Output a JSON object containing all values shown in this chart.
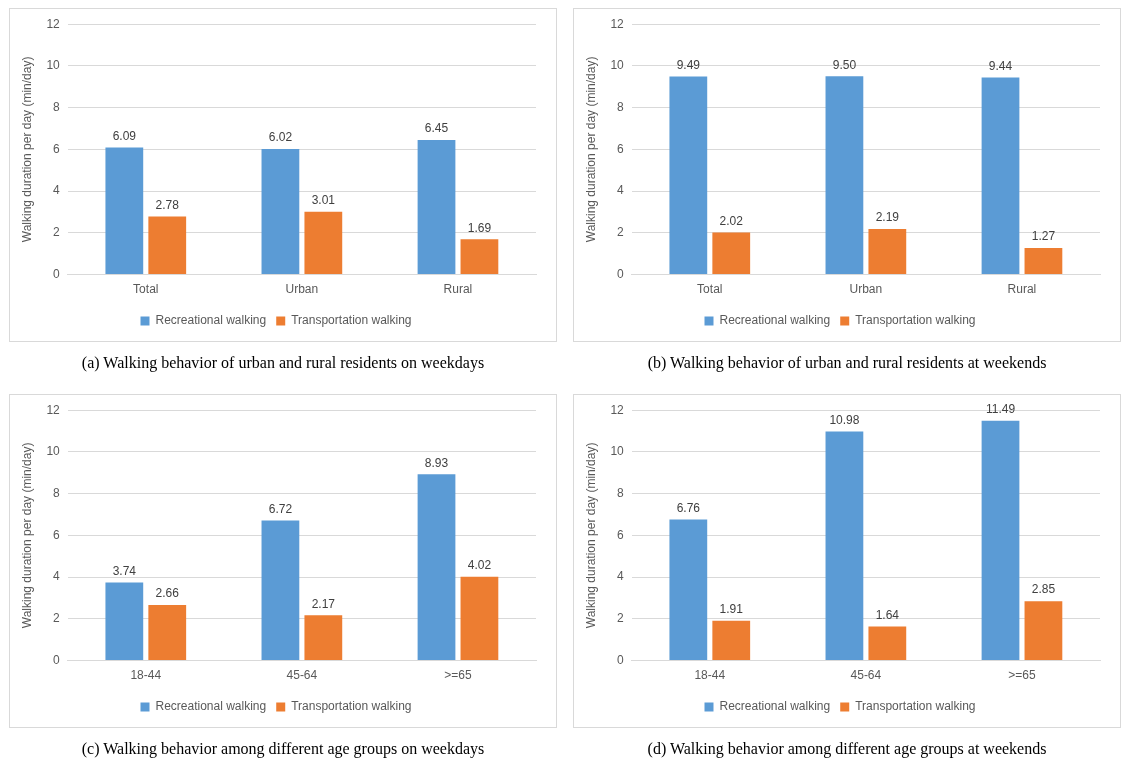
{
  "chart_data": [
    {
      "type": "bar",
      "title": "(a)  Walking behavior of urban and rural residents on weekdays",
      "ylabel": "Walking duration per day (min/day)",
      "categories": [
        "Total",
        "Urban",
        "Rural"
      ],
      "ylim": [
        0,
        12
      ],
      "yticks": [
        0,
        2,
        4,
        6,
        8,
        10,
        12
      ],
      "grid": "y",
      "legend": "bottom",
      "series": [
        {
          "name": "Recreational walking",
          "color": "#5b9bd5",
          "values": [
            6.09,
            6.02,
            6.45
          ],
          "value_labels": [
            "6.09",
            "6.02",
            "6.45"
          ]
        },
        {
          "name": "Transportation walking",
          "color": "#ed7d31",
          "values": [
            2.78,
            3.01,
            1.69
          ],
          "value_labels": [
            "2.78",
            "3.01",
            "1.69"
          ]
        }
      ]
    },
    {
      "type": "bar",
      "title": "(b)  Walking behavior of urban and rural residents at weekends",
      "ylabel": "Walking duration per day (min/day)",
      "categories": [
        "Total",
        "Urban",
        "Rural"
      ],
      "ylim": [
        0,
        12
      ],
      "yticks": [
        0,
        2,
        4,
        6,
        8,
        10,
        12
      ],
      "grid": "y",
      "legend": "bottom",
      "series": [
        {
          "name": "Recreational walking",
          "color": "#5b9bd5",
          "values": [
            9.49,
            9.5,
            9.44
          ],
          "value_labels": [
            "9.49",
            "9.50",
            "9.44"
          ]
        },
        {
          "name": "Transportation walking",
          "color": "#ed7d31",
          "values": [
            2.02,
            2.19,
            1.27
          ],
          "value_labels": [
            "2.02",
            "2.19",
            "1.27"
          ]
        }
      ]
    },
    {
      "type": "bar",
      "title": "(c)  Walking behavior among different age groups on weekdays",
      "ylabel": "Walking duration per day (min/day)",
      "categories": [
        "18-44",
        "45-64",
        ">=65"
      ],
      "ylim": [
        0,
        12
      ],
      "yticks": [
        0,
        2,
        4,
        6,
        8,
        10,
        12
      ],
      "grid": "y",
      "legend": "bottom",
      "series": [
        {
          "name": "Recreational walking",
          "color": "#5b9bd5",
          "values": [
            3.74,
            6.72,
            8.93
          ],
          "value_labels": [
            "3.74",
            "6.72",
            "8.93"
          ]
        },
        {
          "name": "Transportation walking",
          "color": "#ed7d31",
          "values": [
            2.66,
            2.17,
            4.02
          ],
          "value_labels": [
            "2.66",
            "2.17",
            "4.02"
          ]
        }
      ]
    },
    {
      "type": "bar",
      "title": "(d)  Walking behavior among different age groups at weekends",
      "ylabel": "Walking duration per day (min/day)",
      "categories": [
        "18-44",
        "45-64",
        ">=65"
      ],
      "ylim": [
        0,
        12
      ],
      "yticks": [
        0,
        2,
        4,
        6,
        8,
        10,
        12
      ],
      "grid": "y",
      "legend": "bottom",
      "series": [
        {
          "name": "Recreational walking",
          "color": "#5b9bd5",
          "values": [
            6.76,
            10.98,
            11.49
          ],
          "value_labels": [
            "6.76",
            "10.98",
            "11.49"
          ]
        },
        {
          "name": "Transportation walking",
          "color": "#ed7d31",
          "values": [
            1.91,
            1.64,
            2.85
          ],
          "value_labels": [
            "1.91",
            "1.64",
            "2.85"
          ]
        }
      ]
    }
  ]
}
